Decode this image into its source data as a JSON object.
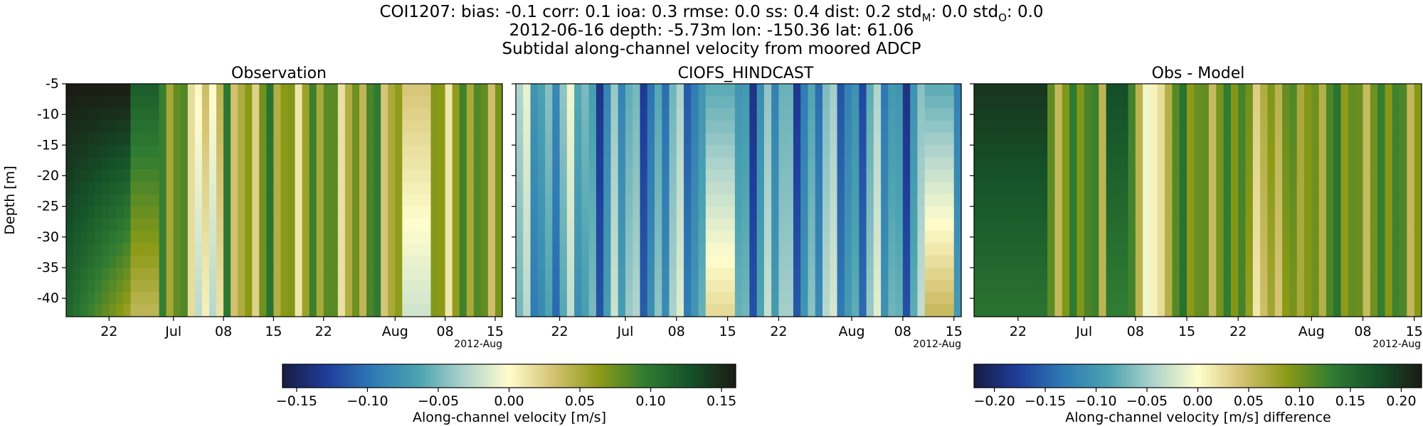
{
  "figure": {
    "title_line1": "COI1207: bias: -0.1  corr: 0.1  ioa: 0.3  rmse: 0.0  ss: 0.4  dist: 0.2  std",
    "title_line1_sub_m": "M",
    "title_line1_mid": ": 0.0  std",
    "title_line1_sub_o": "O",
    "title_line1_end": ": 0.0",
    "title_line2": "2012-06-16 depth: -5.73m lon: -150.36 lat: 61.06",
    "title_line3": "Subtidal along-channel velocity from moored ADCP"
  },
  "chart_data": [
    {
      "type": "heatmap",
      "title": "Observation",
      "ylabel": "Depth [m]",
      "xlabel": "",
      "x_range": [
        "2012-06-16",
        "2012-08-16"
      ],
      "x_ticks": [
        {
          "date": "2012-06-22",
          "label": "22"
        },
        {
          "date": "2012-07-01",
          "label": "Jul"
        },
        {
          "date": "2012-07-08",
          "label": "08"
        },
        {
          "date": "2012-07-15",
          "label": "15"
        },
        {
          "date": "2012-07-22",
          "label": "22"
        },
        {
          "date": "2012-08-01",
          "label": "Aug"
        },
        {
          "date": "2012-08-08",
          "label": "08"
        },
        {
          "date": "2012-08-15",
          "label": "15"
        }
      ],
      "x_offset_label": "2012-Aug",
      "ylim": [
        -43,
        -5
      ],
      "y_ticks": [
        -5,
        -10,
        -15,
        -20,
        -25,
        -30,
        -35,
        -40
      ],
      "colormap": "delta",
      "clim": [
        -0.16,
        0.16
      ]
    },
    {
      "type": "heatmap",
      "title": "CIOFS_HINDCAST",
      "xlabel": "",
      "x_range": [
        "2012-06-16",
        "2012-08-16"
      ],
      "x_ticks": [
        {
          "date": "2012-06-22",
          "label": "22"
        },
        {
          "date": "2012-07-01",
          "label": "Jul"
        },
        {
          "date": "2012-07-08",
          "label": "08"
        },
        {
          "date": "2012-07-15",
          "label": "15"
        },
        {
          "date": "2012-07-22",
          "label": "22"
        },
        {
          "date": "2012-08-01",
          "label": "Aug"
        },
        {
          "date": "2012-08-08",
          "label": "08"
        },
        {
          "date": "2012-08-15",
          "label": "15"
        }
      ],
      "x_offset_label": "2012-Aug",
      "ylim": [
        -43,
        -5
      ],
      "colormap": "delta",
      "clim": [
        -0.16,
        0.16
      ]
    },
    {
      "type": "heatmap",
      "title": "Obs - Model",
      "xlabel": "",
      "x_range": [
        "2012-06-16",
        "2012-08-16"
      ],
      "x_ticks": [
        {
          "date": "2012-06-22",
          "label": "22"
        },
        {
          "date": "2012-07-01",
          "label": "Jul"
        },
        {
          "date": "2012-07-08",
          "label": "08"
        },
        {
          "date": "2012-07-15",
          "label": "15"
        },
        {
          "date": "2012-07-22",
          "label": "22"
        },
        {
          "date": "2012-08-01",
          "label": "Aug"
        },
        {
          "date": "2012-08-08",
          "label": "08"
        },
        {
          "date": "2012-08-15",
          "label": "15"
        }
      ],
      "x_offset_label": "2012-Aug",
      "ylim": [
        -43,
        -5
      ],
      "colormap": "delta",
      "clim": [
        -0.22,
        0.22
      ]
    }
  ],
  "colorbars": [
    {
      "label": "Along-channel velocity [m/s]",
      "range": [
        -0.16,
        0.16
      ],
      "ticks": [
        {
          "value": -0.15,
          "label": "−0.15"
        },
        {
          "value": -0.1,
          "label": "−0.10"
        },
        {
          "value": -0.05,
          "label": "−0.05"
        },
        {
          "value": 0.0,
          "label": "0.00"
        },
        {
          "value": 0.05,
          "label": "0.05"
        },
        {
          "value": 0.1,
          "label": "0.10"
        },
        {
          "value": 0.15,
          "label": "0.15"
        }
      ]
    },
    {
      "label": "Along-channel velocity [m/s] difference",
      "range": [
        -0.22,
        0.22
      ],
      "ticks": [
        {
          "value": -0.2,
          "label": "−0.20"
        },
        {
          "value": -0.15,
          "label": "−0.15"
        },
        {
          "value": -0.1,
          "label": "−0.10"
        },
        {
          "value": -0.05,
          "label": "−0.05"
        },
        {
          "value": 0.0,
          "label": "0.00"
        },
        {
          "value": 0.05,
          "label": "0.05"
        },
        {
          "value": 0.1,
          "label": "0.10"
        },
        {
          "value": 0.15,
          "label": "0.15"
        },
        {
          "value": 0.2,
          "label": "0.20"
        }
      ]
    }
  ],
  "colormap_stops": [
    "#171c42",
    "#1f3e9c",
    "#2f7ab5",
    "#4ba3b1",
    "#aed3cd",
    "#fffdcd",
    "#d3c170",
    "#8b9a16",
    "#2f7c32",
    "#155229",
    "#1b1b14"
  ]
}
